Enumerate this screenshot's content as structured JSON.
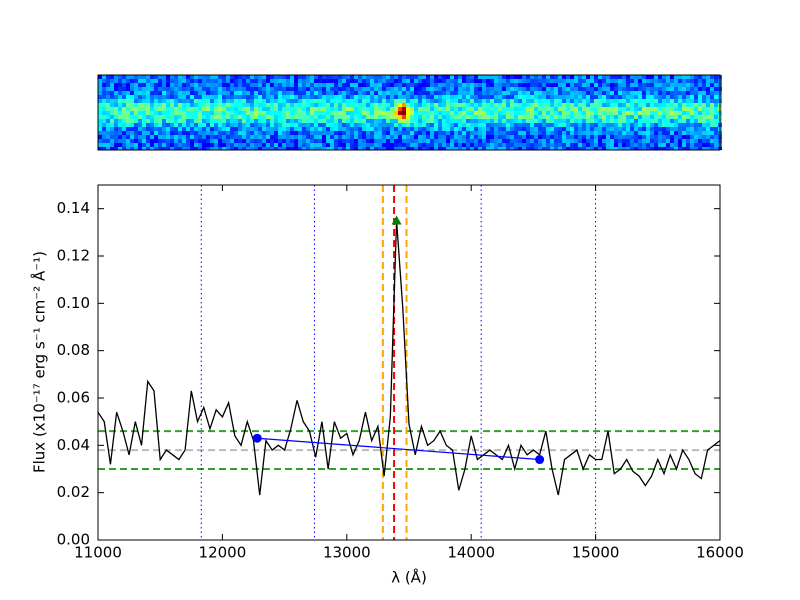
{
  "chart_data": {
    "type": "line",
    "xlabel": "λ (Å)",
    "ylabel": "Flux (x10⁻¹⁷ erg s⁻¹ cm⁻² Å⁻¹)",
    "x": [
      11000,
      11050,
      11100,
      11150,
      11200,
      11250,
      11300,
      11350,
      11400,
      11450,
      11500,
      11550,
      11600,
      11650,
      11700,
      11750,
      11800,
      11850,
      11900,
      11950,
      12000,
      12050,
      12100,
      12150,
      12200,
      12250,
      12300,
      12350,
      12400,
      12450,
      12500,
      12550,
      12600,
      12650,
      12700,
      12750,
      12800,
      12850,
      12900,
      12950,
      13000,
      13050,
      13100,
      13150,
      13200,
      13250,
      13300,
      13350,
      13400,
      13450,
      13500,
      13550,
      13600,
      13650,
      13700,
      13750,
      13800,
      13850,
      13900,
      13950,
      14000,
      14050,
      14100,
      14150,
      14200,
      14250,
      14300,
      14350,
      14400,
      14450,
      14500,
      14550,
      14600,
      14650,
      14700,
      14750,
      14800,
      14850,
      14900,
      14950,
      15000,
      15050,
      15100,
      15150,
      15200,
      15250,
      15300,
      15350,
      15400,
      15450,
      15500,
      15550,
      15600,
      15650,
      15700,
      15750,
      15800,
      15850,
      15900,
      15950,
      16000
    ],
    "series": [
      {
        "color": "#000000",
        "values": [
          0.054,
          0.05,
          0.032,
          0.054,
          0.046,
          0.036,
          0.05,
          0.04,
          0.067,
          0.063,
          0.034,
          0.038,
          0.036,
          0.034,
          0.038,
          0.063,
          0.05,
          0.056,
          0.047,
          0.055,
          0.052,
          0.058,
          0.044,
          0.04,
          0.05,
          0.042,
          0.019,
          0.042,
          0.038,
          0.04,
          0.038,
          0.047,
          0.059,
          0.05,
          0.046,
          0.035,
          0.05,
          0.03,
          0.05,
          0.043,
          0.045,
          0.036,
          0.042,
          0.054,
          0.042,
          0.048,
          0.027,
          0.052,
          0.135,
          0.098,
          0.049,
          0.036,
          0.048,
          0.04,
          0.042,
          0.046,
          0.04,
          0.038,
          0.021,
          0.03,
          0.044,
          0.034,
          0.036,
          0.038,
          0.036,
          0.034,
          0.04,
          0.03,
          0.04,
          0.036,
          0.038,
          0.036,
          0.046,
          0.03,
          0.019,
          0.034,
          0.036,
          0.038,
          0.03,
          0.036,
          0.034,
          0.034,
          0.046,
          0.028,
          0.03,
          0.034,
          0.029,
          0.027,
          0.023,
          0.027,
          0.034,
          0.028,
          0.036,
          0.03,
          0.038,
          0.034,
          0.028,
          0.026,
          0.038,
          0.04,
          0.042
        ]
      }
    ],
    "xlim": [
      11000,
      16000
    ],
    "ylim": [
      0,
      0.15
    ],
    "xticks": [
      11000,
      12000,
      13000,
      14000,
      15000,
      16000
    ],
    "yticks": [
      {
        "value": 0,
        "label": "0.00"
      },
      {
        "value": 0.02,
        "label": "0.02"
      },
      {
        "value": 0.04,
        "label": "0.04"
      },
      {
        "value": 0.06,
        "label": "0.06"
      },
      {
        "value": 0.08,
        "label": "0.08"
      },
      {
        "value": 0.1,
        "label": "0.10"
      },
      {
        "value": 0.12,
        "label": "0.12"
      },
      {
        "value": 0.14,
        "label": "0.14"
      }
    ],
    "vlines": [
      {
        "x": 11830,
        "color": "#0000ff",
        "style": "dotted"
      },
      {
        "x": 12740,
        "color": "#0000ff",
        "style": "dotted"
      },
      {
        "x": 14080,
        "color": "#0000ff",
        "style": "dotted"
      },
      {
        "x": 15000,
        "color": "#0000ff",
        "style": "dotted"
      },
      {
        "x": 13290,
        "color": "#ffa500",
        "style": "dashed"
      },
      {
        "x": 13480,
        "color": "#ffa500",
        "style": "dashed"
      },
      {
        "x": 13380,
        "color": "#ff0000",
        "style": "dashed"
      }
    ],
    "hlines": [
      {
        "y": 0.046,
        "color": "#33a02c",
        "style": "dashed"
      },
      {
        "y": 0.03,
        "color": "#33a02c",
        "style": "dashed"
      },
      {
        "y": 0.038,
        "color": "#bbbbbb",
        "style": "dashed"
      }
    ],
    "continuum": {
      "x": [
        12280,
        14550
      ],
      "y": [
        0.043,
        0.034
      ],
      "color": "#0000ff"
    },
    "peak": {
      "x": 13400,
      "y": 0.135,
      "color": "#008000"
    }
  }
}
